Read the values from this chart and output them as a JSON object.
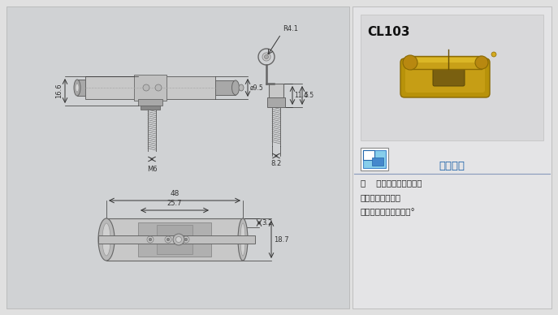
{
  "bg_color": "#e0e0e0",
  "left_panel_bg": "#d4d4d4",
  "right_panel_bg": "#e8e8e8",
  "photo_bg": "#d8d8d8",
  "title": "CL103",
  "feature_title": "特征说明",
  "spec_line1": "材    质：碳锂馓连、销子",
  "spec_line2": "表面处理：镀彩锌",
  "spec_line3": "结构说明：可开启角度°",
  "dim_color": "#333333",
  "blue_color": "#1a5fa8",
  "draw_color": "#666666",
  "metal_light": "#c8c8c8",
  "metal_mid": "#a8a8a8",
  "metal_dark": "#888888"
}
